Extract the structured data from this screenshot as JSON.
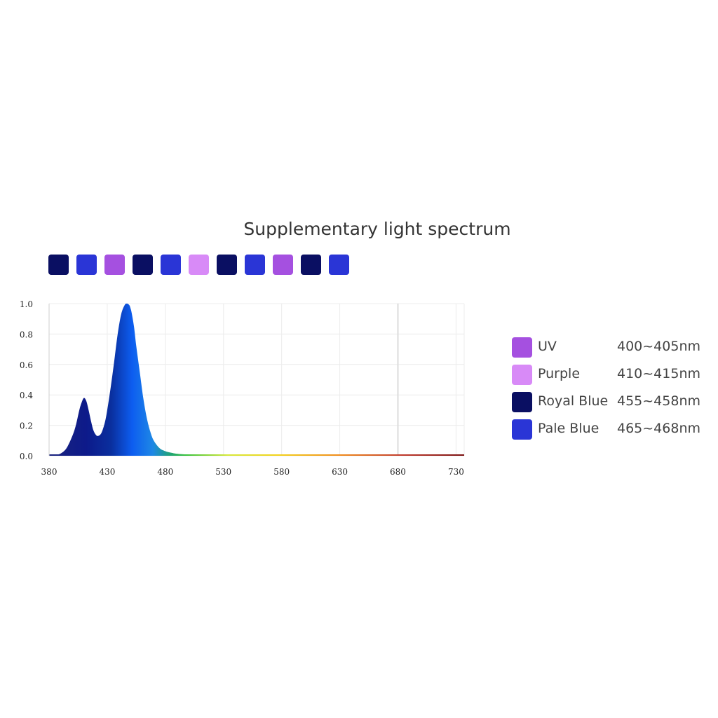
{
  "chips": [
    {
      "color": "#0a0f62",
      "icon": "royal-blue-swatch"
    },
    {
      "color": "#2a35d6",
      "icon": "pale-blue-swatch"
    },
    {
      "color": "#a550e0",
      "icon": "uv-swatch"
    },
    {
      "color": "#0a0f62",
      "icon": "royal-blue-swatch"
    },
    {
      "color": "#2a35d6",
      "icon": "pale-blue-swatch"
    },
    {
      "color": "#d88af7",
      "icon": "purple-swatch"
    },
    {
      "color": "#0a0f62",
      "icon": "royal-blue-swatch"
    },
    {
      "color": "#2a35d6",
      "icon": "pale-blue-swatch"
    },
    {
      "color": "#a550e0",
      "icon": "uv-swatch"
    },
    {
      "color": "#0a0f62",
      "icon": "royal-blue-swatch"
    },
    {
      "color": "#2a35d6",
      "icon": "pale-blue-swatch"
    }
  ],
  "legend": [
    {
      "name": "UV",
      "range": "400~405nm",
      "color": "#a550e0"
    },
    {
      "name": "Purple",
      "range": "410~415nm",
      "color": "#d88af7"
    },
    {
      "name": "Royal Blue",
      "range": "455~458nm",
      "color": "#0a0f62"
    },
    {
      "name": "Pale Blue",
      "range": "465~468nm",
      "color": "#2a35d6"
    }
  ],
  "chart_data": {
    "type": "area",
    "title": "Supplementary light spectrum",
    "xlabel": "",
    "ylabel": "",
    "xlim": [
      380,
      737
    ],
    "ylim": [
      0,
      1.0
    ],
    "x_ticks": [
      "380",
      "430",
      "480",
      "530",
      "580",
      "630",
      "680",
      "730"
    ],
    "y_ticks": [
      "0.0",
      "0.2",
      "0.4",
      "0.6",
      "0.8",
      "1.0"
    ],
    "grid": true,
    "x": [
      380,
      385,
      390,
      395,
      400,
      403,
      406,
      408,
      410,
      412,
      414,
      416,
      418,
      420,
      422,
      425,
      428,
      430,
      433,
      436,
      439,
      442,
      445,
      447,
      449,
      450,
      451,
      453,
      455,
      458,
      461,
      464,
      467,
      470,
      475,
      480,
      485,
      490,
      500,
      510,
      520,
      540,
      580,
      630,
      680,
      737
    ],
    "values": [
      0.0,
      0.005,
      0.015,
      0.05,
      0.13,
      0.2,
      0.3,
      0.35,
      0.38,
      0.36,
      0.3,
      0.23,
      0.17,
      0.14,
      0.13,
      0.15,
      0.22,
      0.3,
      0.45,
      0.62,
      0.8,
      0.93,
      0.99,
      1.0,
      0.99,
      0.97,
      0.94,
      0.85,
      0.72,
      0.55,
      0.38,
      0.25,
      0.16,
      0.1,
      0.05,
      0.03,
      0.02,
      0.013,
      0.008,
      0.005,
      0.004,
      0.003,
      0.003,
      0.003,
      0.003,
      0.003
    ]
  }
}
